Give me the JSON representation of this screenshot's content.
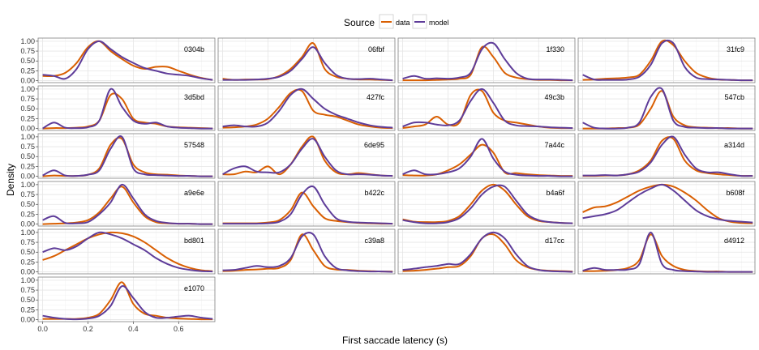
{
  "chart_data": {
    "type": "line",
    "legend": {
      "title": "Source",
      "placement": "top",
      "entries": [
        {
          "name": "data",
          "color": "#d95f02"
        },
        {
          "name": "model",
          "color": "#5e3c99"
        }
      ]
    },
    "xlabel": "First saccade latency (s)",
    "ylabel": "Density",
    "xlim": [
      -0.02,
      0.76
    ],
    "ylim": [
      -0.05,
      1.08
    ],
    "xticks": [
      0.0,
      0.2,
      0.4,
      0.6
    ],
    "xtick_labels": [
      "0.0",
      "0.2",
      "0.4",
      "0.6"
    ],
    "yticks": [
      0.0,
      0.25,
      0.5,
      0.75,
      1.0
    ],
    "ytick_labels": [
      "0.00",
      "0.25",
      "0.50",
      "0.75",
      "1.00"
    ],
    "grid": true,
    "x": [
      0.0,
      0.05,
      0.1,
      0.15,
      0.2,
      0.25,
      0.3,
      0.35,
      0.4,
      0.45,
      0.5,
      0.55,
      0.6,
      0.65,
      0.7,
      0.75
    ],
    "panels": [
      {
        "label": "0304b",
        "series": [
          {
            "name": "data",
            "values": [
              0.12,
              0.12,
              0.2,
              0.45,
              0.85,
              1.0,
              0.75,
              0.55,
              0.38,
              0.3,
              0.35,
              0.35,
              0.25,
              0.15,
              0.07,
              0.02
            ]
          },
          {
            "name": "model",
            "values": [
              0.15,
              0.12,
              0.05,
              0.3,
              0.8,
              1.0,
              0.8,
              0.6,
              0.45,
              0.32,
              0.25,
              0.18,
              0.15,
              0.12,
              0.06,
              0.02
            ]
          }
        ]
      },
      {
        "label": "06fbf",
        "series": [
          {
            "name": "data",
            "values": [
              0.05,
              0.02,
              0.03,
              0.03,
              0.04,
              0.12,
              0.3,
              0.6,
              0.95,
              0.3,
              0.1,
              0.05,
              0.03,
              0.03,
              0.02,
              0.01
            ]
          },
          {
            "name": "model",
            "values": [
              0.02,
              0.02,
              0.02,
              0.03,
              0.05,
              0.1,
              0.25,
              0.55,
              0.85,
              0.45,
              0.15,
              0.05,
              0.04,
              0.05,
              0.03,
              0.01
            ]
          }
        ]
      },
      {
        "label": "1f330",
        "series": [
          {
            "name": "data",
            "values": [
              0.01,
              0.01,
              0.01,
              0.02,
              0.03,
              0.05,
              0.15,
              0.85,
              0.6,
              0.2,
              0.08,
              0.04,
              0.02,
              0.02,
              0.01,
              0.01
            ]
          },
          {
            "name": "model",
            "values": [
              0.05,
              0.12,
              0.05,
              0.06,
              0.05,
              0.08,
              0.2,
              0.8,
              0.95,
              0.55,
              0.2,
              0.05,
              0.03,
              0.03,
              0.02,
              0.01
            ]
          }
        ]
      },
      {
        "label": "31fc9",
        "series": [
          {
            "name": "data",
            "values": [
              0.02,
              0.03,
              0.05,
              0.06,
              0.08,
              0.15,
              0.5,
              1.0,
              0.9,
              0.5,
              0.2,
              0.08,
              0.03,
              0.02,
              0.01,
              0.01
            ]
          },
          {
            "name": "model",
            "values": [
              0.15,
              0.03,
              0.02,
              0.02,
              0.03,
              0.1,
              0.4,
              0.95,
              0.95,
              0.35,
              0.08,
              0.04,
              0.03,
              0.02,
              0.01,
              0.01
            ]
          }
        ]
      },
      {
        "label": "3d5bd",
        "series": [
          {
            "name": "data",
            "values": [
              0.0,
              0.01,
              0.01,
              0.02,
              0.05,
              0.2,
              0.85,
              0.75,
              0.25,
              0.15,
              0.12,
              0.05,
              0.03,
              0.02,
              0.01,
              0.0
            ]
          },
          {
            "name": "model",
            "values": [
              0.0,
              0.15,
              0.02,
              0.01,
              0.03,
              0.2,
              1.0,
              0.55,
              0.2,
              0.12,
              0.15,
              0.05,
              0.02,
              0.01,
              0.0,
              0.0
            ]
          }
        ]
      },
      {
        "label": "427fc",
        "series": [
          {
            "name": "data",
            "values": [
              0.02,
              0.03,
              0.05,
              0.1,
              0.25,
              0.55,
              0.9,
              0.95,
              0.45,
              0.35,
              0.3,
              0.2,
              0.1,
              0.05,
              0.02,
              0.01
            ]
          },
          {
            "name": "model",
            "values": [
              0.05,
              0.08,
              0.05,
              0.05,
              0.15,
              0.45,
              0.85,
              1.0,
              0.75,
              0.5,
              0.35,
              0.25,
              0.15,
              0.08,
              0.04,
              0.02
            ]
          }
        ]
      },
      {
        "label": "49c3b",
        "series": [
          {
            "name": "data",
            "values": [
              0.01,
              0.05,
              0.1,
              0.3,
              0.1,
              0.15,
              0.85,
              0.95,
              0.4,
              0.2,
              0.15,
              0.1,
              0.05,
              0.02,
              0.01,
              0.01
            ]
          },
          {
            "name": "model",
            "values": [
              0.05,
              0.15,
              0.15,
              0.1,
              0.08,
              0.2,
              0.7,
              1.0,
              0.65,
              0.2,
              0.08,
              0.06,
              0.05,
              0.03,
              0.02,
              0.01
            ]
          }
        ]
      },
      {
        "label": "547cb",
        "series": [
          {
            "name": "data",
            "values": [
              0.0,
              0.0,
              0.0,
              0.01,
              0.02,
              0.1,
              0.5,
              0.95,
              0.3,
              0.08,
              0.03,
              0.02,
              0.01,
              0.01,
              0.0,
              0.0
            ]
          },
          {
            "name": "model",
            "values": [
              0.15,
              0.02,
              0.0,
              0.0,
              0.02,
              0.15,
              0.8,
              1.0,
              0.2,
              0.04,
              0.02,
              0.01,
              0.01,
              0.0,
              0.0,
              0.0
            ]
          }
        ]
      },
      {
        "label": "57548",
        "series": [
          {
            "name": "data",
            "values": [
              0.0,
              0.02,
              0.01,
              0.01,
              0.04,
              0.2,
              0.8,
              0.95,
              0.3,
              0.1,
              0.05,
              0.04,
              0.02,
              0.01,
              0.0,
              0.0
            ]
          },
          {
            "name": "model",
            "values": [
              0.02,
              0.15,
              0.02,
              0.01,
              0.04,
              0.15,
              0.7,
              1.0,
              0.2,
              0.05,
              0.03,
              0.02,
              0.01,
              0.01,
              0.0,
              0.0
            ]
          }
        ]
      },
      {
        "label": "6de95",
        "series": [
          {
            "name": "data",
            "values": [
              0.05,
              0.05,
              0.12,
              0.1,
              0.25,
              0.05,
              0.3,
              0.75,
              1.0,
              0.4,
              0.1,
              0.05,
              0.08,
              0.05,
              0.02,
              0.01
            ]
          },
          {
            "name": "model",
            "values": [
              0.05,
              0.2,
              0.25,
              0.12,
              0.1,
              0.1,
              0.3,
              0.7,
              0.95,
              0.5,
              0.15,
              0.05,
              0.05,
              0.04,
              0.02,
              0.01
            ]
          }
        ]
      },
      {
        "label": "7a44c",
        "series": [
          {
            "name": "data",
            "values": [
              0.03,
              0.02,
              0.02,
              0.05,
              0.15,
              0.3,
              0.55,
              0.8,
              0.6,
              0.1,
              0.08,
              0.05,
              0.03,
              0.02,
              0.01,
              0.01
            ]
          },
          {
            "name": "model",
            "values": [
              0.05,
              0.15,
              0.05,
              0.05,
              0.1,
              0.2,
              0.5,
              0.95,
              0.45,
              0.12,
              0.04,
              0.02,
              0.01,
              0.01,
              0.0,
              0.0
            ]
          }
        ]
      },
      {
        "label": "a314d",
        "series": [
          {
            "name": "data",
            "values": [
              0.01,
              0.01,
              0.02,
              0.02,
              0.05,
              0.15,
              0.4,
              0.9,
              0.95,
              0.4,
              0.15,
              0.08,
              0.05,
              0.03,
              0.01,
              0.01
            ]
          },
          {
            "name": "model",
            "values": [
              0.02,
              0.02,
              0.03,
              0.02,
              0.05,
              0.12,
              0.35,
              0.8,
              1.0,
              0.55,
              0.2,
              0.1,
              0.1,
              0.05,
              0.01,
              0.01
            ]
          }
        ]
      },
      {
        "label": "a9e6e",
        "series": [
          {
            "name": "data",
            "values": [
              0.0,
              0.01,
              0.02,
              0.04,
              0.1,
              0.3,
              0.65,
              0.95,
              0.55,
              0.2,
              0.05,
              0.02,
              0.01,
              0.01,
              0.0,
              0.0
            ]
          },
          {
            "name": "model",
            "values": [
              0.1,
              0.2,
              0.03,
              0.02,
              0.05,
              0.25,
              0.55,
              1.0,
              0.65,
              0.25,
              0.08,
              0.03,
              0.01,
              0.01,
              0.0,
              0.0
            ]
          }
        ]
      },
      {
        "label": "b422c",
        "series": [
          {
            "name": "data",
            "values": [
              0.02,
              0.02,
              0.02,
              0.02,
              0.04,
              0.1,
              0.35,
              0.8,
              0.45,
              0.15,
              0.08,
              0.05,
              0.03,
              0.02,
              0.01,
              0.01
            ]
          },
          {
            "name": "model",
            "values": [
              0.01,
              0.01,
              0.01,
              0.01,
              0.02,
              0.06,
              0.25,
              0.75,
              0.95,
              0.5,
              0.15,
              0.06,
              0.04,
              0.03,
              0.02,
              0.01
            ]
          }
        ]
      },
      {
        "label": "b4a6f",
        "series": [
          {
            "name": "data",
            "values": [
              0.12,
              0.06,
              0.05,
              0.05,
              0.08,
              0.2,
              0.5,
              0.85,
              1.0,
              0.85,
              0.5,
              0.2,
              0.08,
              0.05,
              0.03,
              0.02
            ]
          },
          {
            "name": "model",
            "values": [
              0.1,
              0.05,
              0.02,
              0.02,
              0.05,
              0.15,
              0.4,
              0.75,
              0.95,
              0.95,
              0.6,
              0.25,
              0.1,
              0.05,
              0.03,
              0.02
            ]
          }
        ]
      },
      {
        "label": "b608f",
        "series": [
          {
            "name": "data",
            "values": [
              0.3,
              0.42,
              0.45,
              0.55,
              0.7,
              0.85,
              0.95,
              1.0,
              0.95,
              0.8,
              0.6,
              0.35,
              0.15,
              0.06,
              0.03,
              0.02
            ]
          },
          {
            "name": "model",
            "values": [
              0.15,
              0.2,
              0.25,
              0.35,
              0.55,
              0.75,
              0.9,
              1.0,
              0.85,
              0.6,
              0.35,
              0.2,
              0.12,
              0.08,
              0.06,
              0.04
            ]
          }
        ]
      },
      {
        "label": "bd801",
        "series": [
          {
            "name": "data",
            "values": [
              0.3,
              0.4,
              0.55,
              0.7,
              0.85,
              0.95,
              1.0,
              0.98,
              0.9,
              0.75,
              0.55,
              0.35,
              0.2,
              0.1,
              0.04,
              0.02
            ]
          },
          {
            "name": "model",
            "values": [
              0.5,
              0.6,
              0.55,
              0.65,
              0.85,
              1.0,
              0.95,
              0.85,
              0.7,
              0.55,
              0.35,
              0.2,
              0.1,
              0.05,
              0.02,
              0.01
            ]
          }
        ]
      },
      {
        "label": "c39a8",
        "series": [
          {
            "name": "data",
            "values": [
              0.02,
              0.03,
              0.05,
              0.06,
              0.08,
              0.1,
              0.3,
              0.95,
              0.55,
              0.15,
              0.06,
              0.05,
              0.03,
              0.02,
              0.01,
              0.01
            ]
          },
          {
            "name": "model",
            "values": [
              0.04,
              0.05,
              0.1,
              0.15,
              0.12,
              0.15,
              0.35,
              0.9,
              0.95,
              0.4,
              0.1,
              0.04,
              0.02,
              0.01,
              0.01,
              0.0
            ]
          }
        ]
      },
      {
        "label": "d17cc",
        "series": [
          {
            "name": "data",
            "values": [
              0.02,
              0.03,
              0.05,
              0.08,
              0.12,
              0.15,
              0.4,
              0.85,
              0.95,
              0.7,
              0.3,
              0.12,
              0.05,
              0.03,
              0.02,
              0.01
            ]
          },
          {
            "name": "model",
            "values": [
              0.05,
              0.08,
              0.12,
              0.15,
              0.2,
              0.2,
              0.45,
              0.85,
              1.0,
              0.85,
              0.45,
              0.15,
              0.05,
              0.02,
              0.01,
              0.0
            ]
          }
        ]
      },
      {
        "label": "d4912",
        "series": [
          {
            "name": "data",
            "values": [
              0.02,
              0.02,
              0.03,
              0.05,
              0.1,
              0.3,
              0.95,
              0.4,
              0.15,
              0.05,
              0.02,
              0.01,
              0.01,
              0.0,
              0.0,
              0.0
            ]
          },
          {
            "name": "model",
            "values": [
              0.03,
              0.1,
              0.05,
              0.05,
              0.06,
              0.2,
              1.0,
              0.2,
              0.05,
              0.02,
              0.01,
              0.0,
              0.0,
              0.0,
              0.0,
              0.0
            ]
          }
        ]
      },
      {
        "label": "e1070",
        "series": [
          {
            "name": "data",
            "values": [
              0.02,
              0.02,
              0.02,
              0.02,
              0.05,
              0.15,
              0.5,
              0.95,
              0.4,
              0.15,
              0.1,
              0.05,
              0.03,
              0.02,
              0.01,
              0.01
            ]
          },
          {
            "name": "model",
            "values": [
              0.1,
              0.05,
              0.02,
              0.01,
              0.03,
              0.1,
              0.35,
              0.85,
              0.55,
              0.2,
              0.05,
              0.05,
              0.08,
              0.1,
              0.05,
              0.02
            ]
          }
        ]
      }
    ]
  }
}
